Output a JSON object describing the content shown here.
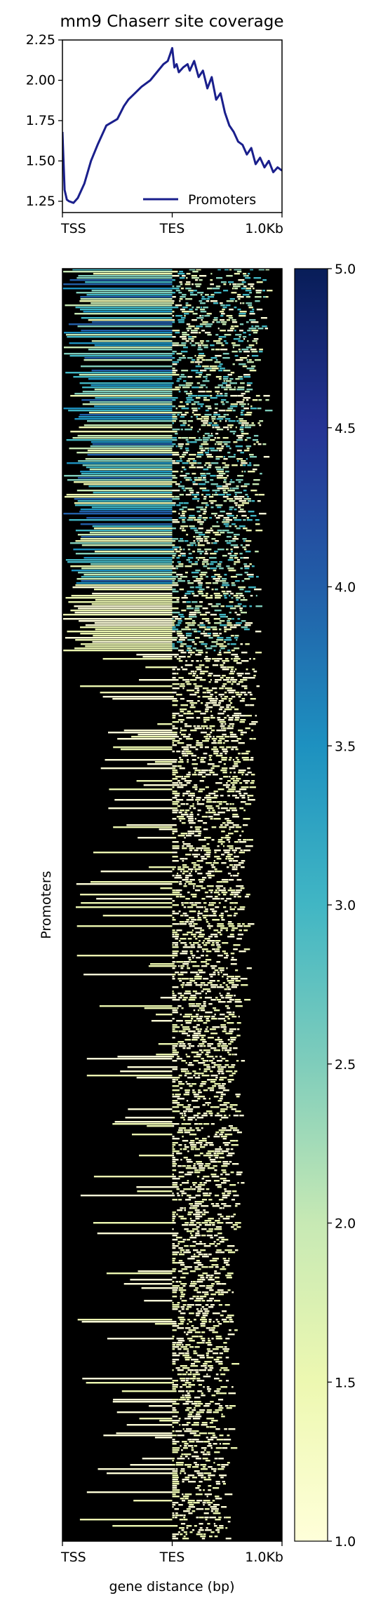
{
  "chart_data": [
    {
      "type": "line",
      "title": "mm9 Chaserr site coverage",
      "xlabel": "",
      "ylabel": "",
      "x_ticks": [
        "TSS",
        "TES",
        "1.0Kb"
      ],
      "y_ticks": [
        "1.25",
        "1.50",
        "1.75",
        "2.00",
        "2.25"
      ],
      "ylim": [
        1.18,
        2.25
      ],
      "legend": {
        "position": "lower-right"
      },
      "series": [
        {
          "name": "Promoters",
          "color": "#1a1f8c",
          "x": [
            0,
            0.01,
            0.02,
            0.03,
            0.05,
            0.07,
            0.1,
            0.13,
            0.16,
            0.2,
            0.25,
            0.28,
            0.3,
            0.33,
            0.36,
            0.4,
            0.43,
            0.46,
            0.48,
            0.49,
            0.5,
            0.51,
            0.52,
            0.53,
            0.55,
            0.57,
            0.58,
            0.6,
            0.62,
            0.64,
            0.66,
            0.68,
            0.7,
            0.72,
            0.74,
            0.76,
            0.78,
            0.8,
            0.82,
            0.84,
            0.86,
            0.88,
            0.9,
            0.92,
            0.94,
            0.96,
            0.98,
            1.0
          ],
          "values": [
            1.68,
            1.32,
            1.26,
            1.25,
            1.24,
            1.27,
            1.36,
            1.5,
            1.6,
            1.72,
            1.76,
            1.84,
            1.88,
            1.92,
            1.96,
            2.0,
            2.05,
            2.1,
            2.12,
            2.16,
            2.2,
            2.08,
            2.1,
            2.05,
            2.08,
            2.1,
            2.06,
            2.12,
            2.02,
            2.06,
            1.95,
            2.02,
            1.88,
            1.92,
            1.8,
            1.72,
            1.68,
            1.62,
            1.6,
            1.54,
            1.58,
            1.48,
            1.52,
            1.46,
            1.5,
            1.43,
            1.46,
            1.44
          ]
        }
      ]
    },
    {
      "type": "heatmap",
      "ylabel": "Promoters",
      "xlabel": "gene distance (bp)",
      "x_ticks": [
        "TSS",
        "TES",
        "1.0Kb"
      ],
      "colorbar": {
        "ticks": [
          "5.0",
          "4.5",
          "4.0",
          "3.5",
          "3.0",
          "2.5",
          "2.0",
          "1.5",
          "1.0"
        ],
        "range": [
          1.0,
          5.0
        ],
        "colormap": [
          "#ffffd9",
          "#edf8b1",
          "#c7e9b4",
          "#7fcdbb",
          "#41b6c4",
          "#1d91c0",
          "#225ea8",
          "#253494",
          "#081d58"
        ]
      },
      "background": "#000000"
    }
  ]
}
